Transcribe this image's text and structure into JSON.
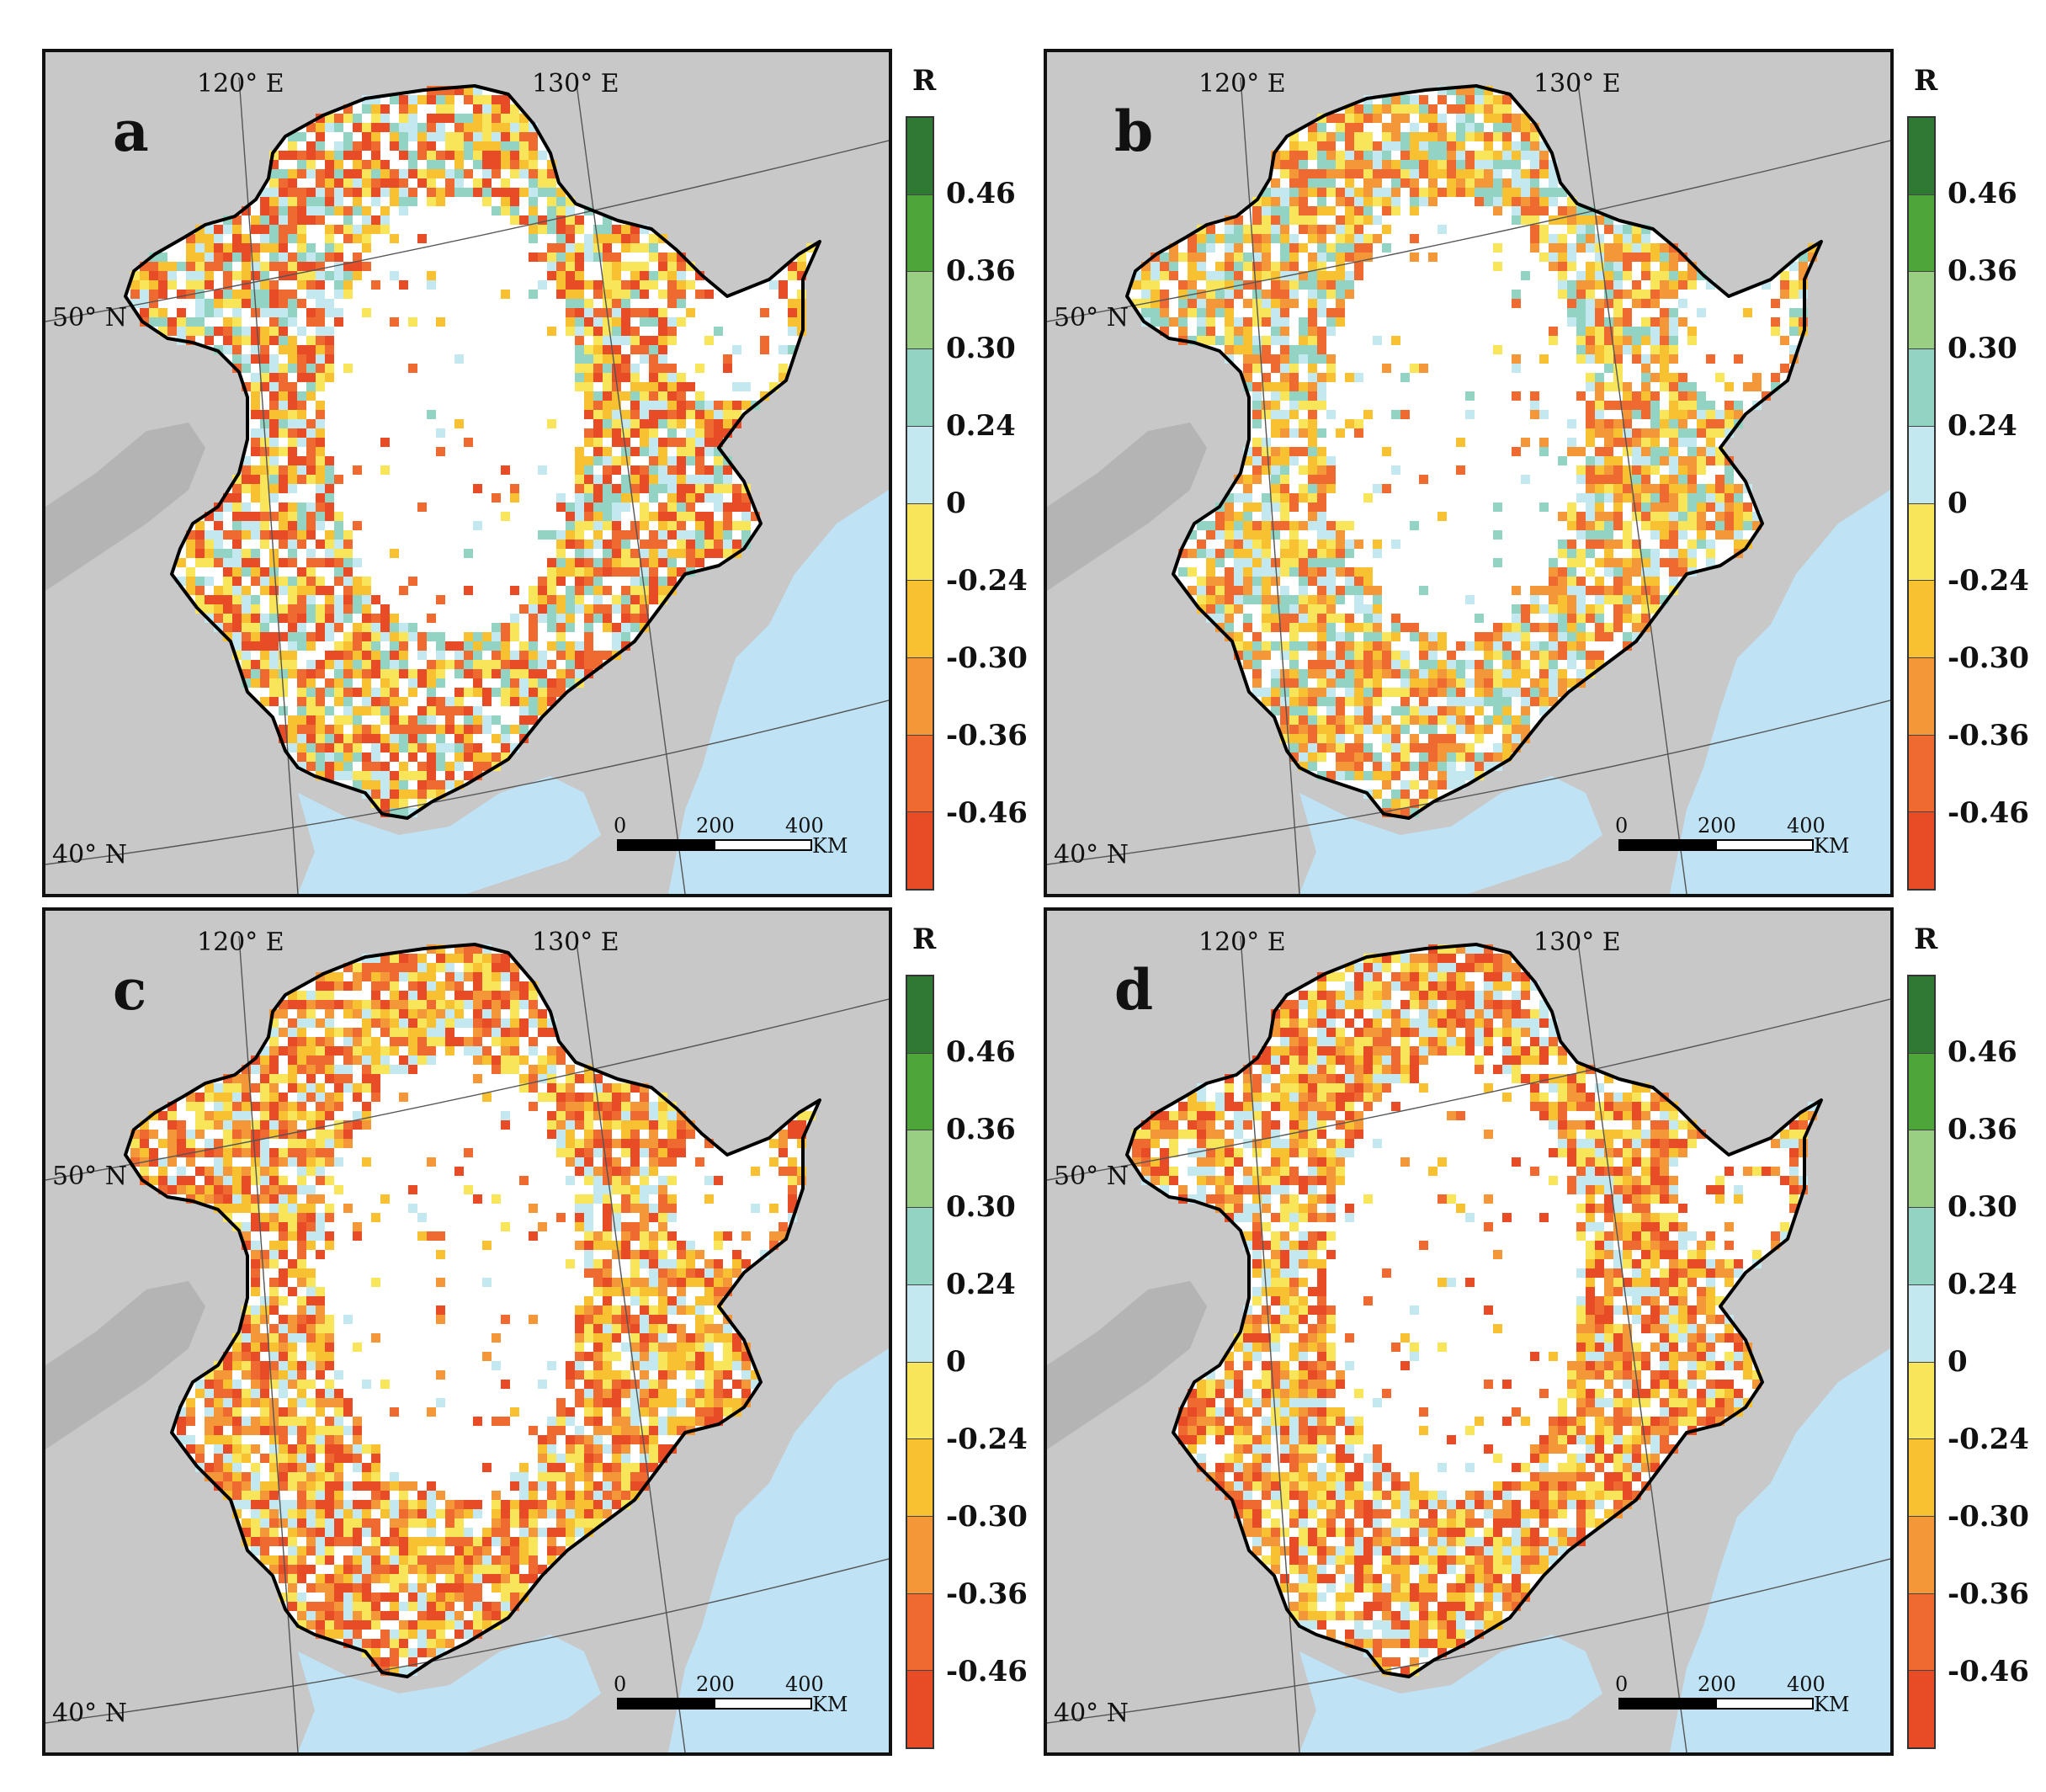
{
  "legend": {
    "title": "R",
    "labels": [
      "0.46",
      "0.36",
      "0.30",
      "0.24",
      "0",
      "-0.24",
      "-0.30",
      "-0.36",
      "-0.46"
    ],
    "colors": [
      "#2f7a32",
      "#4ea63a",
      "#98cf82",
      "#93d3c4",
      "#c4e8ef",
      "#f8e55a",
      "#f7c132",
      "#f39739",
      "#ee6a31",
      "#e74c26"
    ]
  },
  "map": {
    "lon_labels": [
      "120° E",
      "130° E"
    ],
    "lat_labels": [
      "50° N",
      "40° N"
    ],
    "scale": {
      "ticks": [
        "0",
        "200",
        "400"
      ],
      "unit": "KM"
    },
    "colors": {
      "land_outside": "#c8c8c8",
      "sea": "#bfe3f5",
      "region_bg": "#ffffff",
      "border": "#000000"
    }
  },
  "panels": [
    {
      "letter": "a",
      "dominant": [
        "#e74c26",
        "#ee6a31",
        "#f7c132",
        "#f8e55a",
        "#c4e8ef",
        "#93d3c4"
      ]
    },
    {
      "letter": "b",
      "dominant": [
        "#ee6a31",
        "#f39739",
        "#f7c132",
        "#f8e55a",
        "#c4e8ef",
        "#93d3c4"
      ]
    },
    {
      "letter": "c",
      "dominant": [
        "#e74c26",
        "#ee6a31",
        "#f39739",
        "#f7c132",
        "#f8e55a",
        "#c4e8ef"
      ]
    },
    {
      "letter": "d",
      "dominant": [
        "#e74c26",
        "#ee6a31",
        "#f39739",
        "#f7c132",
        "#f8e55a",
        "#c4e8ef"
      ]
    }
  ]
}
